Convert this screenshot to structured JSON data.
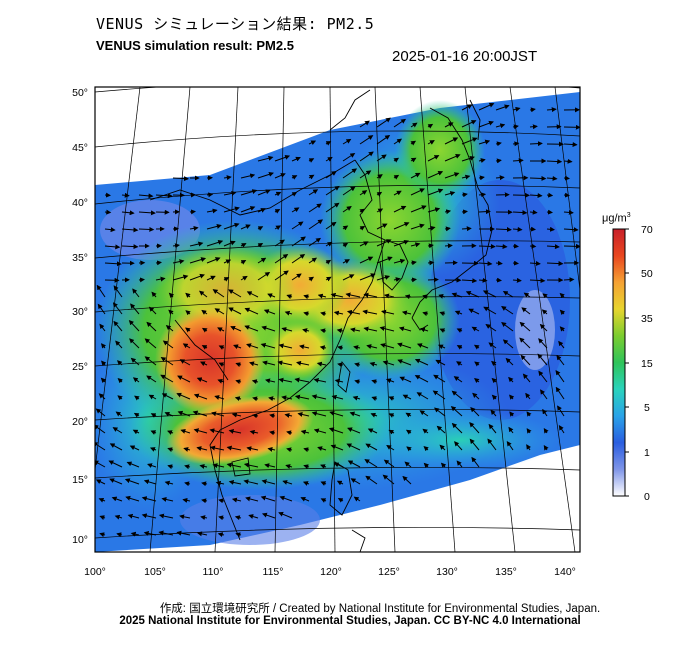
{
  "title_jp": "VENUS シミュレーション結果: PM2.5",
  "title_en": "VENUS simulation result: PM2.5",
  "datetime": "2025-01-16 20:00JST",
  "credit_line1": "作成: 国立環境研究所 / Created by National Institute for Environmental Studies, Japan.",
  "credit_line2": "2025 National Institute for Environmental Studies, Japan. CC BY-NC 4.0 International",
  "colorbar": {
    "unit": "μg/m",
    "unit_sup": "3",
    "ticks": [
      "70",
      "50",
      "35",
      "15",
      "5",
      "1",
      "0"
    ],
    "colors": [
      "#d8352a",
      "#f07b1f",
      "#f5c53b",
      "#c9e02b",
      "#55c534",
      "#2ad3b0",
      "#2aa8e8",
      "#2a6fe0",
      "#5a7fe8",
      "#a9b8f0",
      "#ffffff"
    ]
  },
  "map": {
    "lat_labels": [
      "50°",
      "45°",
      "40°",
      "35°",
      "30°",
      "25°",
      "20°",
      "15°",
      "10°"
    ],
    "lon_labels": [
      "100°",
      "105°",
      "110°",
      "115°",
      "120°",
      "125°",
      "130°",
      "135°",
      "140°"
    ],
    "background_color": "#ffffff",
    "land_outline_color": "#000000"
  }
}
